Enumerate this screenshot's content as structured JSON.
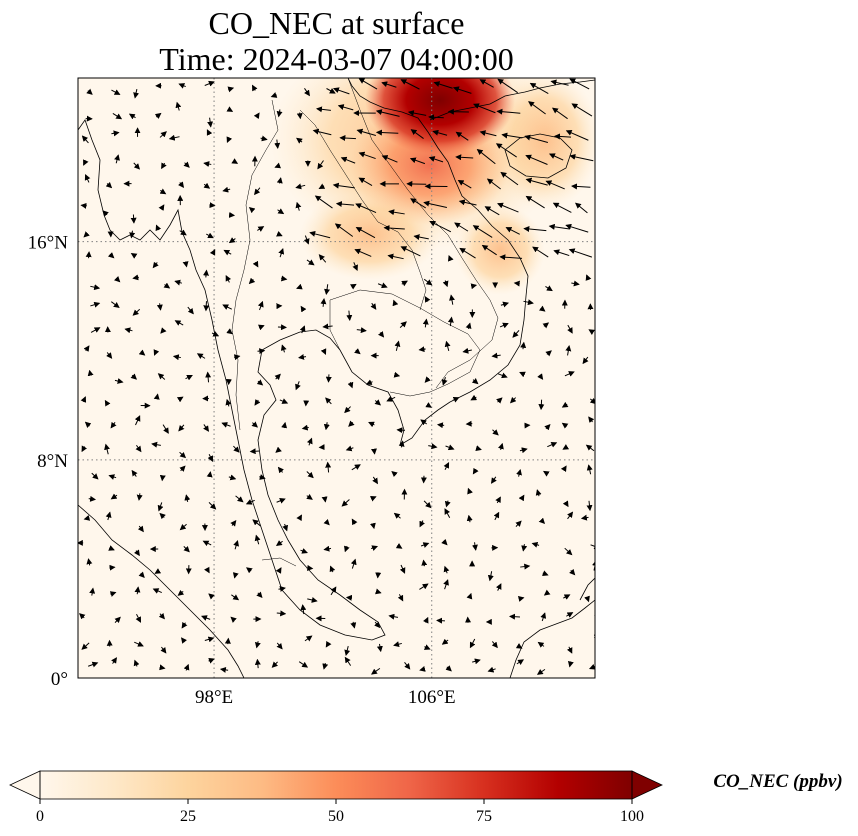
{
  "title": {
    "line1": "CO_NEC at surface",
    "line2": "Time: 2024-03-07 04:00:00"
  },
  "map": {
    "projection": "PlateCarree",
    "extent": {
      "lon_min": 93,
      "lon_max": 112,
      "lat_min": 0,
      "lat_max": 22
    },
    "gridlines": {
      "style": "dotted",
      "color": "#808080"
    },
    "lon_ticks": [
      {
        "value": 98,
        "label": "98°E"
      },
      {
        "value": 106,
        "label": "106°E"
      }
    ],
    "lat_ticks": [
      {
        "value": 0,
        "label": "0°"
      },
      {
        "value": 8,
        "label": "8°N"
      },
      {
        "value": 16,
        "label": "16°N"
      }
    ],
    "colormap": "OrRd",
    "background_color": "#fff7ec"
  },
  "colorbar": {
    "label": "CO_NEC (ppbv)",
    "min": 0,
    "max": 100,
    "ticks": [
      "0",
      "25",
      "50",
      "75",
      "100"
    ],
    "extend": "both",
    "colors": [
      "#fff7ec",
      "#fee8c8",
      "#fdd49e",
      "#fdbb84",
      "#fc8d59",
      "#ef6548",
      "#d7301f",
      "#b30000",
      "#7f0000"
    ]
  }
}
